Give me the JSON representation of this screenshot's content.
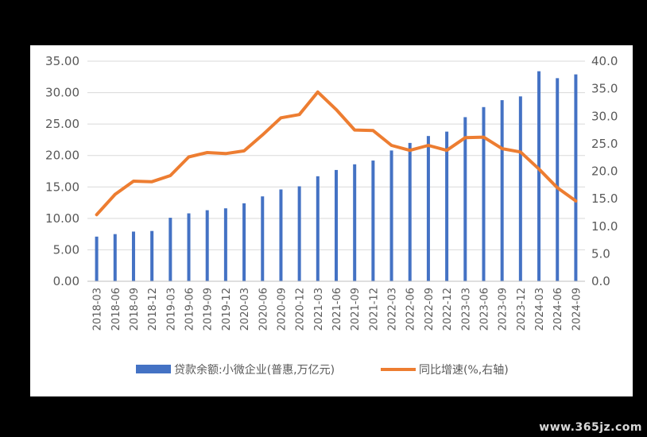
{
  "chart_data": {
    "type": "bar+line",
    "categories": [
      "2018-03",
      "2018-06",
      "2018-09",
      "2018-12",
      "2019-03",
      "2019-06",
      "2019-09",
      "2019-12",
      "2020-03",
      "2020-06",
      "2020-09",
      "2020-12",
      "2021-03",
      "2021-06",
      "2021-09",
      "2021-12",
      "2022-03",
      "2022-06",
      "2022-09",
      "2022-12",
      "2023-03",
      "2023-06",
      "2023-09",
      "2023-12",
      "2024-03",
      "2024-06",
      "2024-09"
    ],
    "series": [
      {
        "name": "贷款余额:小微企业(普惠,万亿元)",
        "type": "bar",
        "axis": "left",
        "color": "#4472c4",
        "values": [
          7.1,
          7.5,
          7.9,
          8.0,
          10.1,
          10.8,
          11.3,
          11.6,
          12.4,
          13.5,
          14.6,
          15.1,
          16.7,
          17.7,
          18.6,
          19.2,
          20.8,
          22.0,
          23.1,
          23.8,
          26.1,
          27.7,
          28.8,
          29.4,
          33.4,
          32.3,
          32.9
        ]
      },
      {
        "name": "同比增速(%,右轴)",
        "type": "line",
        "axis": "right",
        "color": "#ed7d31",
        "values": [
          12.1,
          15.8,
          18.2,
          18.1,
          19.2,
          22.6,
          23.4,
          23.2,
          23.7,
          26.6,
          29.7,
          30.3,
          34.4,
          31.2,
          27.5,
          27.4,
          24.7,
          23.8,
          24.7,
          23.8,
          26.1,
          26.2,
          24.1,
          23.5,
          20.4,
          17.0,
          14.6
        ]
      }
    ],
    "yleft": {
      "ylim": [
        0,
        35
      ],
      "ticks": [
        "0.00",
        "5.00",
        "10.00",
        "15.00",
        "20.00",
        "25.00",
        "30.00",
        "35.00"
      ]
    },
    "yright": {
      "ylim": [
        0,
        40
      ],
      "ticks": [
        "0.0",
        "5.0",
        "10.0",
        "15.0",
        "20.0",
        "25.0",
        "30.0",
        "35.0",
        "40.0"
      ]
    },
    "grid": true,
    "legend": "bottom"
  },
  "watermark": "www.365jz.com"
}
